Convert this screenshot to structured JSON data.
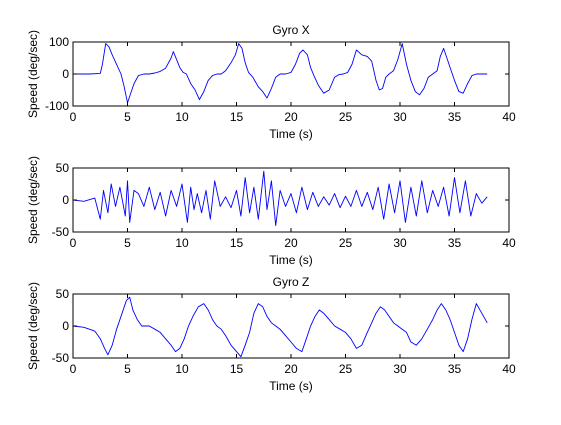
{
  "figure": {
    "background": "#ffffff",
    "line_color": "#0000ff"
  },
  "chart_data": [
    {
      "type": "line",
      "title": "Gyro X",
      "xlabel": "Time (s)",
      "ylabel": "Speed (deg/sec)",
      "xlim": [
        0,
        40
      ],
      "ylim": [
        -100,
        100
      ],
      "xticks": [
        0,
        5,
        10,
        15,
        20,
        25,
        30,
        35,
        40
      ],
      "yticks": [
        -100,
        0,
        100
      ],
      "grid": false,
      "series": [
        {
          "color": "#0000ff",
          "x": [
            0,
            1.5,
            2.5,
            2.7,
            3,
            3.3,
            3.6,
            4,
            4.4,
            4.7,
            5,
            5.2,
            5.6,
            6,
            6.5,
            7,
            7.5,
            8,
            8.5,
            9,
            9.2,
            9.5,
            9.8,
            10.1,
            10.4,
            10.8,
            11.2,
            11.6,
            12,
            12.4,
            12.8,
            13.2,
            13.6,
            14,
            14.5,
            14.9,
            15.2,
            15.5,
            15.8,
            16.1,
            16.5,
            17,
            17.4,
            17.8,
            18.2,
            18.6,
            19,
            19.5,
            20,
            20.4,
            20.8,
            21.1,
            21.5,
            21.8,
            22.1,
            22.5,
            23,
            23.5,
            24,
            24.4,
            24.8,
            25.2,
            25.6,
            26,
            26.5,
            27,
            27.4,
            27.8,
            28.1,
            28.4,
            28.7,
            29,
            29.4,
            29.8,
            30.2,
            30.6,
            31,
            31.4,
            31.8,
            32.2,
            32.6,
            33,
            33.4,
            33.7,
            34,
            34.3,
            34.6,
            35,
            35.4,
            35.8,
            36.2,
            36.6,
            37,
            37.5,
            38
          ],
          "y": [
            0,
            0,
            2,
            30,
            95,
            85,
            60,
            30,
            0,
            -40,
            -90,
            -70,
            -30,
            -5,
            0,
            0,
            3,
            8,
            18,
            50,
            70,
            45,
            20,
            5,
            0,
            -30,
            -50,
            -80,
            -55,
            -20,
            -5,
            0,
            0,
            10,
            35,
            60,
            95,
            80,
            35,
            5,
            -10,
            -40,
            -55,
            -75,
            -45,
            -10,
            0,
            0,
            5,
            30,
            65,
            75,
            60,
            20,
            -5,
            -35,
            -60,
            -50,
            -10,
            -2,
            0,
            5,
            30,
            75,
            60,
            55,
            40,
            -20,
            -50,
            -45,
            -10,
            0,
            10,
            45,
            95,
            30,
            -20,
            -55,
            -65,
            -45,
            -10,
            0,
            10,
            55,
            80,
            50,
            20,
            -20,
            -55,
            -60,
            -30,
            -5,
            0,
            0,
            0
          ]
        }
      ]
    },
    {
      "type": "line",
      "title": "",
      "xlabel": "Time (s)",
      "ylabel": "Speed (deg/sec)",
      "xlim": [
        0,
        40
      ],
      "ylim": [
        -50,
        50
      ],
      "xticks": [
        0,
        5,
        10,
        15,
        20,
        25,
        30,
        35,
        40
      ],
      "yticks": [
        -50,
        0,
        50
      ],
      "grid": false,
      "series": [
        {
          "color": "#0000ff",
          "x": [
            0,
            1,
            2,
            2.5,
            2.8,
            3.2,
            3.5,
            3.9,
            4.3,
            4.8,
            5,
            5.2,
            5.6,
            6,
            6.5,
            7,
            7.5,
            8,
            8.5,
            9,
            9.5,
            10,
            10.5,
            10.8,
            11.1,
            11.4,
            11.8,
            12.2,
            12.6,
            13,
            13.5,
            14,
            14.5,
            15,
            15.4,
            15.8,
            16.2,
            16.6,
            17,
            17.5,
            17.8,
            18.2,
            18.6,
            19,
            19.5,
            20,
            20.5,
            21,
            21.5,
            22,
            22.5,
            23,
            23.5,
            24,
            24.5,
            25,
            25.5,
            26,
            26.5,
            27,
            27.5,
            28,
            28.5,
            29,
            29.5,
            30,
            30.5,
            31,
            31.5,
            32,
            32.5,
            33,
            33.5,
            34,
            34.5,
            35,
            35.5,
            36,
            36.5,
            37,
            37.5,
            38
          ],
          "y": [
            0,
            -2,
            3,
            -30,
            15,
            -20,
            25,
            -10,
            20,
            -25,
            30,
            -35,
            15,
            10,
            -10,
            20,
            -15,
            12,
            -25,
            15,
            -10,
            25,
            -35,
            20,
            -15,
            10,
            -20,
            15,
            -30,
            30,
            -10,
            5,
            -12,
            15,
            -25,
            35,
            -20,
            20,
            -30,
            45,
            -15,
            30,
            -40,
            15,
            -10,
            10,
            -20,
            20,
            -15,
            12,
            -10,
            5,
            -8,
            10,
            -12,
            6,
            -10,
            15,
            -10,
            12,
            -15,
            20,
            -30,
            25,
            -20,
            30,
            -35,
            20,
            -25,
            30,
            -20,
            15,
            -10,
            20,
            -25,
            35,
            -20,
            30,
            -25,
            10,
            -5,
            5
          ]
        }
      ]
    },
    {
      "type": "line",
      "title": "Gyro Z",
      "xlabel": "Time (s)",
      "ylabel": "Speed (deg/sec)",
      "xlim": [
        0,
        40
      ],
      "ylim": [
        -50,
        50
      ],
      "xticks": [
        0,
        5,
        10,
        15,
        20,
        25,
        30,
        35,
        40
      ],
      "yticks": [
        -50,
        0,
        50
      ],
      "grid": false,
      "series": [
        {
          "color": "#0000ff",
          "x": [
            0,
            1,
            2,
            2.5,
            2.9,
            3.2,
            3.6,
            4,
            4.5,
            4.9,
            5.2,
            5.5,
            5.9,
            6.3,
            7,
            7.5,
            8,
            8.5,
            9,
            9.4,
            9.8,
            10.2,
            10.6,
            11,
            11.5,
            12,
            12.4,
            12.8,
            13.2,
            13.6,
            14,
            14.5,
            15,
            15.4,
            15.8,
            16.2,
            16.6,
            17,
            17.4,
            17.8,
            18.2,
            18.6,
            19,
            19.5,
            20,
            20.5,
            21,
            21.4,
            21.8,
            22.2,
            22.6,
            23,
            23.5,
            24,
            24.5,
            25,
            25.5,
            26,
            26.5,
            27,
            27.4,
            27.8,
            28.2,
            28.6,
            29,
            29.4,
            29.8,
            30.2,
            30.6,
            31,
            31.5,
            32,
            32.5,
            33,
            33.4,
            33.8,
            34.2,
            34.6,
            35,
            35.4,
            35.8,
            36.2,
            36.6,
            37,
            37.5,
            38
          ],
          "y": [
            0,
            -2,
            -8,
            -20,
            -35,
            -45,
            -30,
            -5,
            20,
            40,
            45,
            25,
            10,
            0,
            0,
            -5,
            -10,
            -20,
            -30,
            -40,
            -35,
            -20,
            0,
            15,
            30,
            35,
            25,
            10,
            0,
            -5,
            -15,
            -30,
            -40,
            -48,
            -30,
            -10,
            20,
            35,
            30,
            15,
            5,
            0,
            -5,
            -15,
            -25,
            -35,
            -40,
            -20,
            0,
            15,
            25,
            20,
            10,
            0,
            -5,
            -10,
            -20,
            -35,
            -30,
            -10,
            5,
            20,
            30,
            25,
            15,
            5,
            0,
            -5,
            -10,
            -25,
            -30,
            -20,
            -5,
            10,
            25,
            35,
            25,
            10,
            -10,
            -30,
            -40,
            -20,
            10,
            35,
            20,
            5
          ]
        }
      ]
    }
  ]
}
